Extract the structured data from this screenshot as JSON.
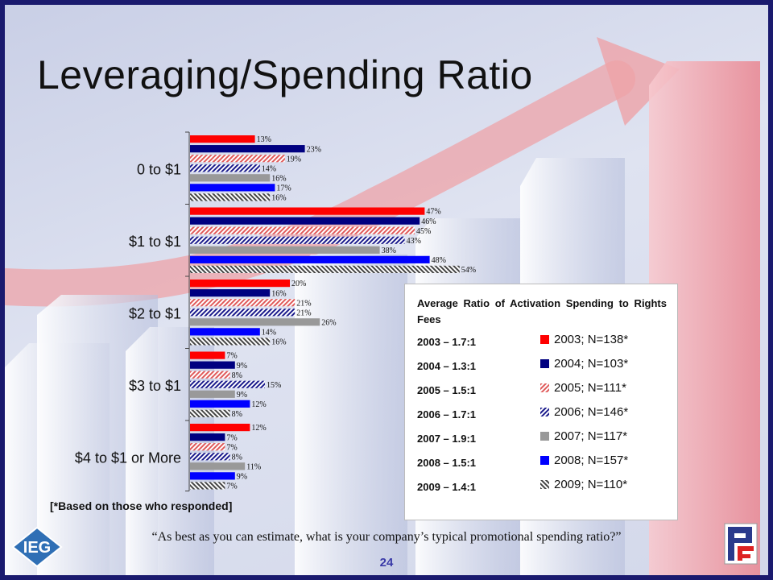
{
  "slide": {
    "title": "Leveraging/Spending Ratio",
    "footnote": "[*Based on those who responded]",
    "question": "“As best as you can estimate, what is your company’s typical promotional spending ratio?”",
    "page_number": "24"
  },
  "avg_box": {
    "title": "Average Ratio of Activation Spending to Rights Fees",
    "ratios": [
      "2003 – 1.7:1",
      "2004 – 1.3:1",
      "2005 – 1.5:1",
      "2006 – 1.7:1",
      "2007 – 1.9:1",
      "2008 – 1.5:1",
      "2009 – 1.4:1"
    ]
  },
  "logos": {
    "left": "IEG",
    "right": "PF"
  },
  "colors": {
    "2003": "#ff0000",
    "2004": "#000080",
    "2005": "#e05a5a",
    "2006": "#1a1a8c",
    "2007": "#999999",
    "2008": "#0000ff",
    "2009": "#555555",
    "slide_border": "#1a1a6e",
    "page_number": "#3a3aa8"
  },
  "chart_data": {
    "type": "bar",
    "orientation": "horizontal",
    "categories": [
      "0 to $1",
      "$1 to $1",
      "$2 to $1",
      "$3 to $1",
      "$4 to $1 or More"
    ],
    "series": [
      {
        "name": "2003; N=138*",
        "fill": "solid-red",
        "values": [
          13,
          47,
          20,
          7,
          12
        ]
      },
      {
        "name": "2004; N=103*",
        "fill": "solid-navy",
        "values": [
          23,
          46,
          16,
          9,
          7
        ]
      },
      {
        "name": "2005; N=111*",
        "fill": "hatched-red",
        "values": [
          19,
          45,
          21,
          8,
          7
        ]
      },
      {
        "name": "2006; N=146*",
        "fill": "hatched-navy",
        "values": [
          14,
          43,
          21,
          15,
          8
        ]
      },
      {
        "name": "2007; N=117*",
        "fill": "solid-gray",
        "values": [
          16,
          38,
          26,
          9,
          11
        ]
      },
      {
        "name": "2008; N=157*",
        "fill": "solid-blue",
        "values": [
          17,
          48,
          14,
          12,
          9
        ]
      },
      {
        "name": "2009; N=110*",
        "fill": "hatched-gray",
        "values": [
          16,
          54,
          16,
          8,
          7
        ]
      }
    ],
    "value_suffix": "%",
    "xlim": [
      0,
      60
    ],
    "legend_position": "right",
    "grid": false
  }
}
